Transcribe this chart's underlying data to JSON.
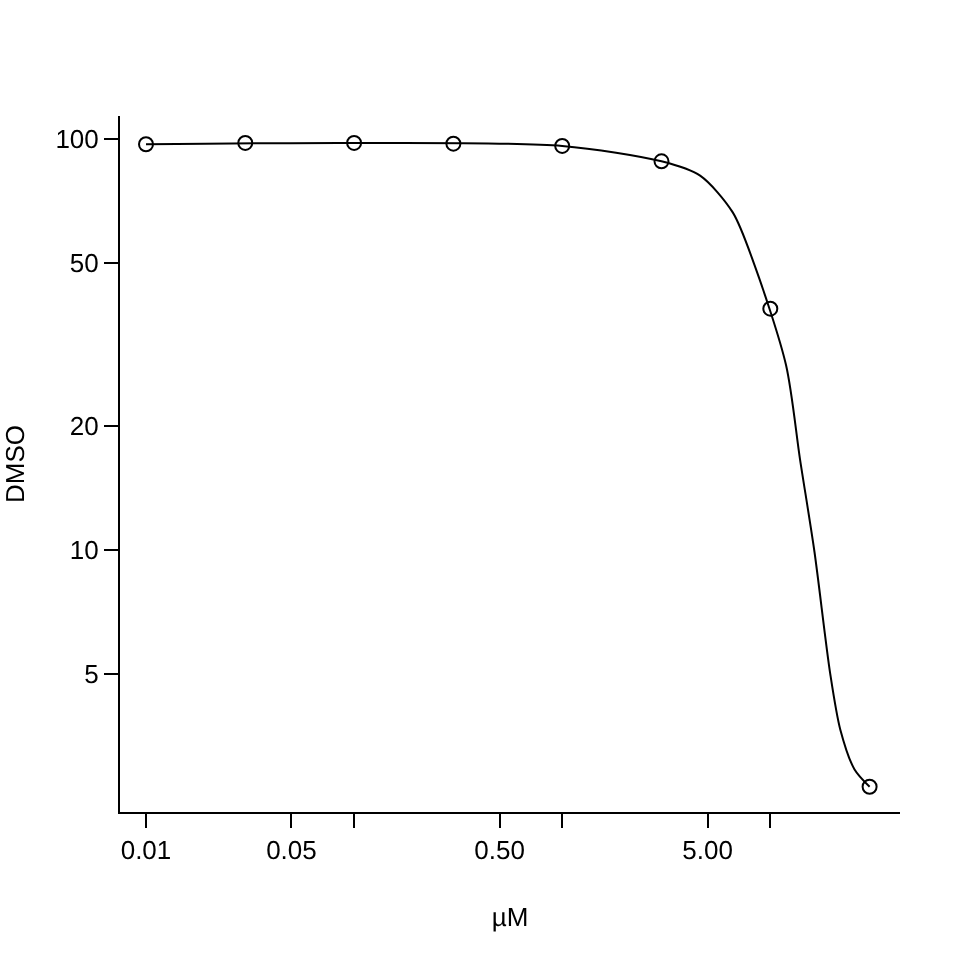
{
  "chart_data": {
    "type": "scatter",
    "xlabel": "µM",
    "ylabel": "DMSO",
    "log": "xy",
    "grid": false,
    "xlim": [
      0.0075,
      42
    ],
    "ylim": [
      2.3,
      114
    ],
    "xticks": [
      0.01,
      0.05,
      {
        "value": 0.1,
        "label": null
      },
      {
        "value": 0.5,
        "label": "0.50"
      },
      {
        "value": 1,
        "label": null
      },
      {
        "value": 5,
        "label": "5.00"
      },
      {
        "value": 10,
        "label": null
      }
    ],
    "yticks": [
      5,
      10,
      20,
      50,
      100
    ],
    "series": [
      {
        "marker": "circle",
        "color": "#000000",
        "x": [
          0.01,
          0.03,
          0.1,
          0.3,
          1,
          3,
          10,
          30
        ],
        "values": [
          97.3,
          98,
          98,
          97.6,
          96.4,
          88.4,
          38.7,
          2.65
        ]
      },
      {
        "type": "line",
        "marker": "none",
        "line_style": "solid",
        "color": "#000000",
        "x": [
          0.01,
          0.1,
          1,
          3,
          4.6,
          6.6,
          8.4,
          11.9,
          13.9,
          16.3,
          19.4,
          21.7,
          25.4,
          30
        ],
        "values": [
          97.3,
          98,
          96.4,
          88.4,
          81.6,
          66.4,
          49.4,
          28.2,
          16.6,
          9.9,
          5.0,
          3.65,
          2.92,
          2.65
        ]
      }
    ]
  }
}
